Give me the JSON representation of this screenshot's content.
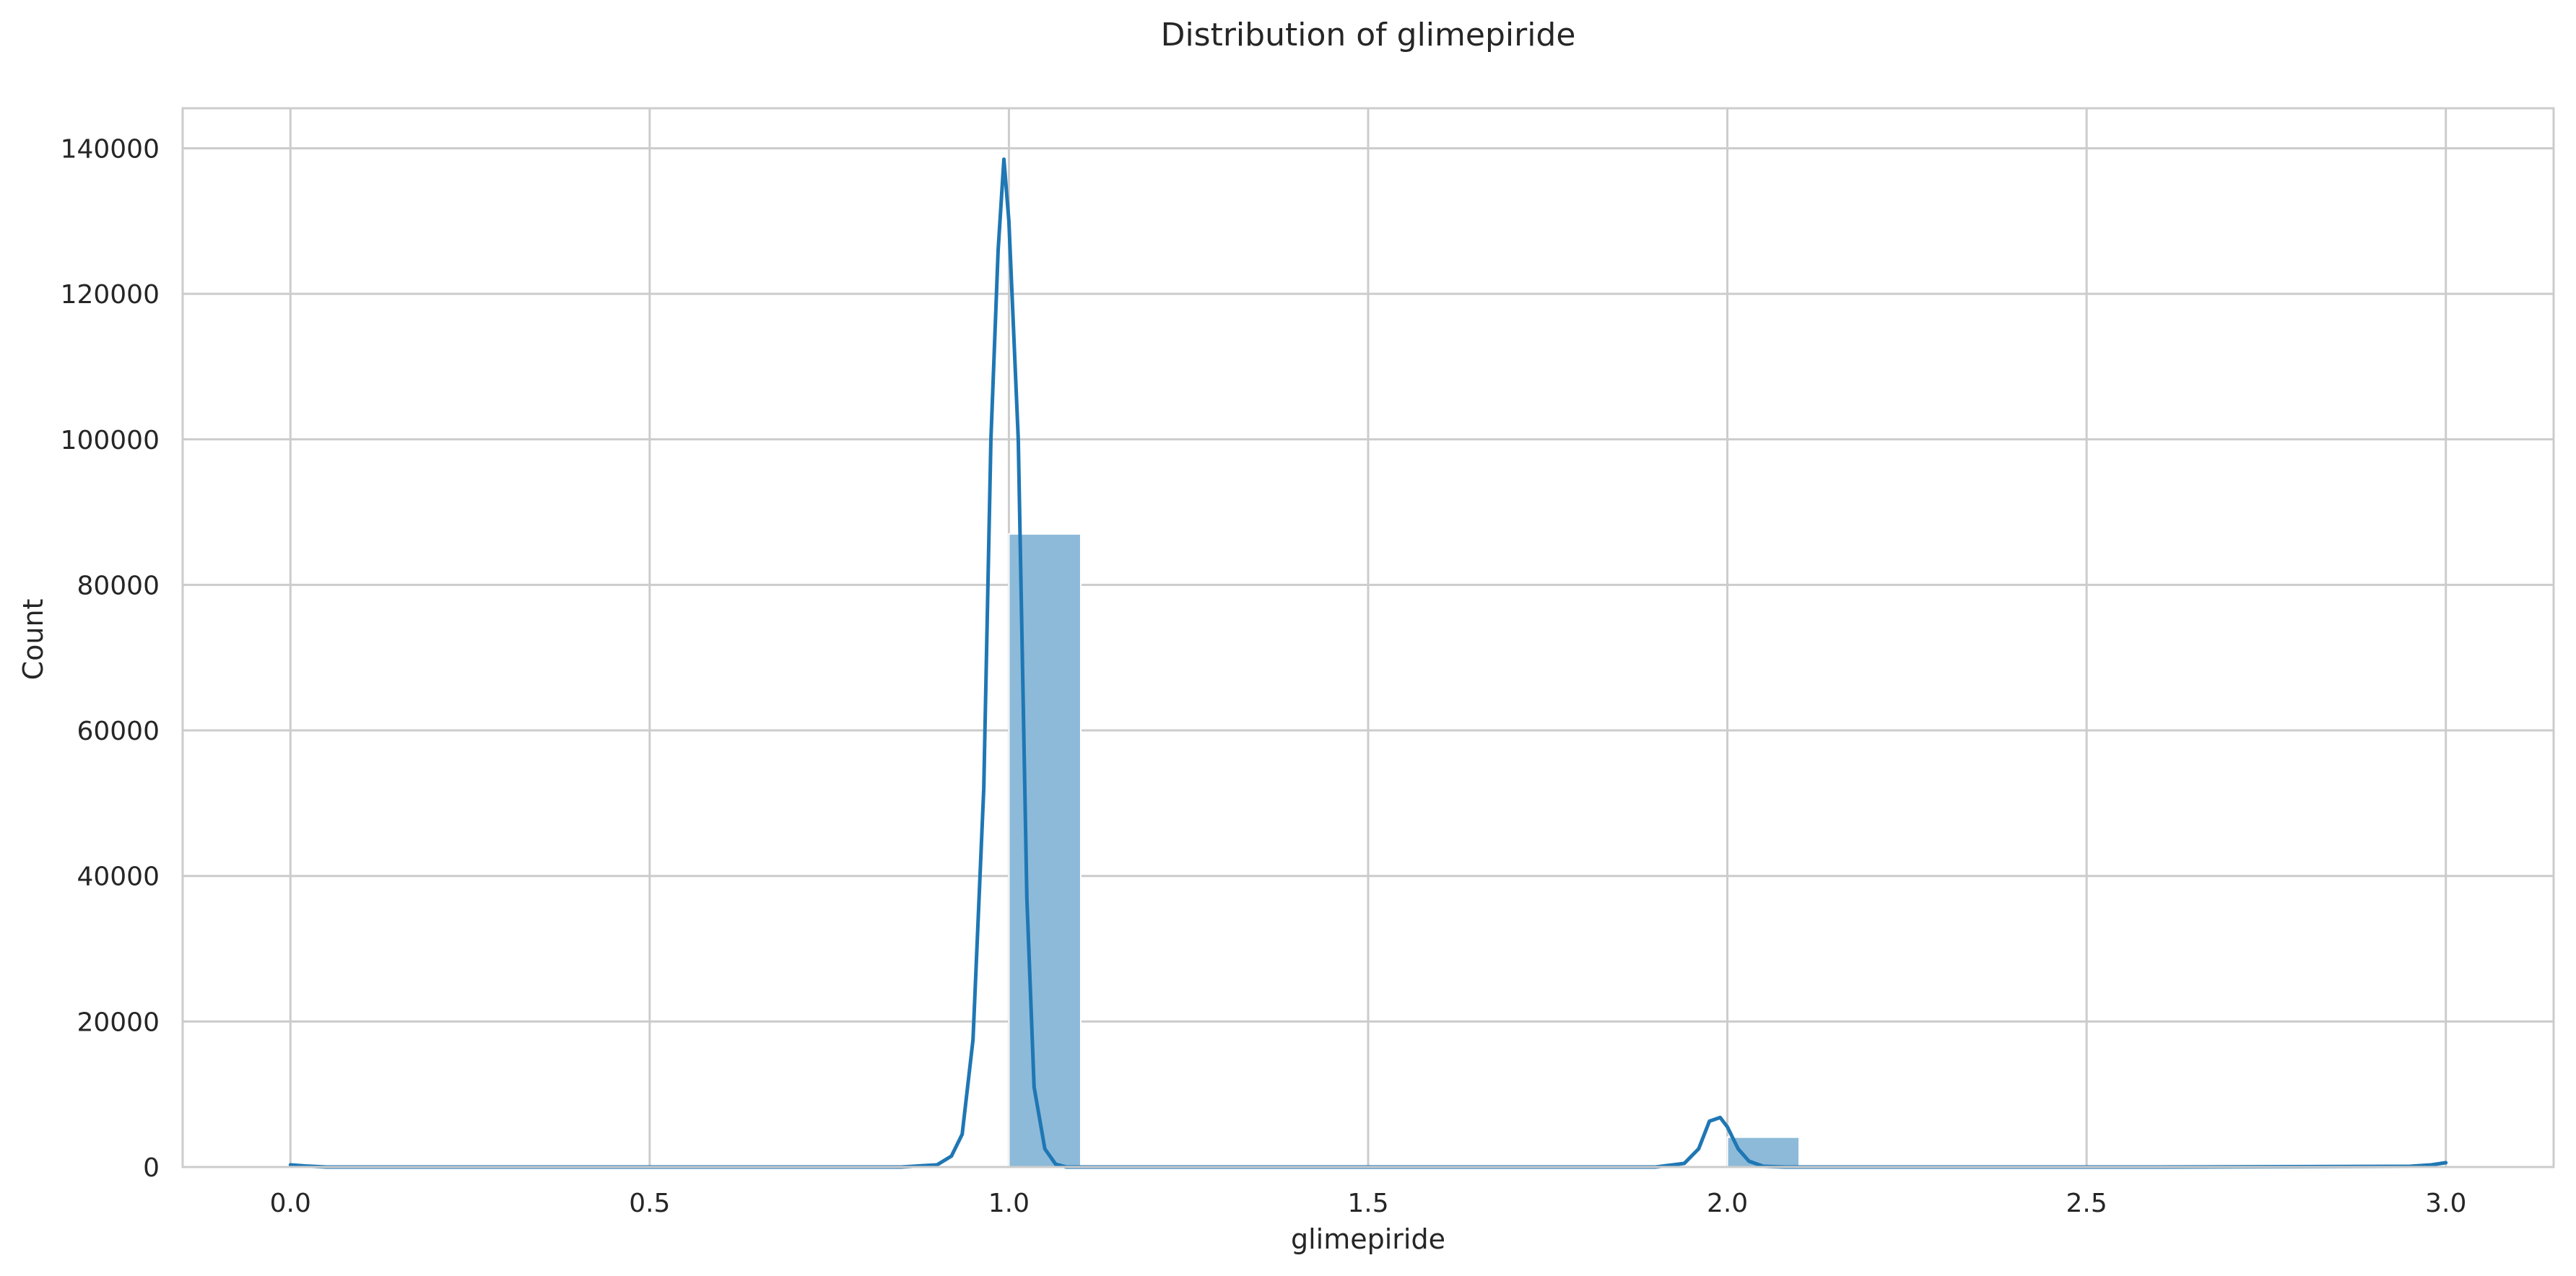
{
  "chart_data": {
    "type": "bar",
    "title": "Distribution of glimepiride",
    "xlabel": "glimepiride",
    "ylabel": "Count",
    "xlim": [
      -0.15,
      3.15
    ],
    "ylim": [
      0,
      145500
    ],
    "xticks": [
      0.0,
      0.5,
      1.0,
      1.5,
      2.0,
      2.5,
      3.0
    ],
    "xtick_labels": [
      "0.0",
      "0.5",
      "1.0",
      "1.5",
      "2.0",
      "2.5",
      "3.0"
    ],
    "yticks": [
      0,
      20000,
      40000,
      60000,
      80000,
      100000,
      120000,
      140000
    ],
    "ytick_labels": [
      "0",
      "20000",
      "40000",
      "60000",
      "80000",
      "100000",
      "120000",
      "140000"
    ],
    "grid": true,
    "bar_color": "#8dbad9",
    "line_color": "#1f77b4",
    "bars": [
      {
        "x0": 0.0,
        "x1": 0.1,
        "count": 0
      },
      {
        "x0": 1.0,
        "x1": 1.1,
        "count": 87000
      },
      {
        "x0": 2.0,
        "x1": 2.1,
        "count": 4100
      },
      {
        "x0": 2.9,
        "x1": 3.0,
        "count": 0
      }
    ],
    "kde": {
      "x": [
        0.0,
        0.02,
        0.05,
        0.3,
        0.6,
        0.85,
        0.9,
        0.92,
        0.935,
        0.95,
        0.965,
        0.975,
        0.985,
        0.993,
        1.0,
        1.013,
        1.025,
        1.035,
        1.05,
        1.065,
        1.08,
        1.1,
        1.3,
        1.6,
        1.9,
        1.94,
        1.96,
        1.975,
        1.99,
        2.0,
        2.015,
        2.03,
        2.05,
        2.08,
        2.2,
        2.6,
        2.95,
        2.98,
        3.0
      ],
      "y": [
        300,
        150,
        0,
        0,
        0,
        0,
        300,
        1500,
        4500,
        17500,
        52000,
        100000,
        126000,
        138500,
        130000,
        100000,
        37000,
        11000,
        2500,
        400,
        0,
        0,
        0,
        0,
        0,
        500,
        2500,
        6300,
        6800,
        5500,
        2500,
        800,
        100,
        0,
        0,
        0,
        100,
        300,
        600
      ]
    }
  }
}
